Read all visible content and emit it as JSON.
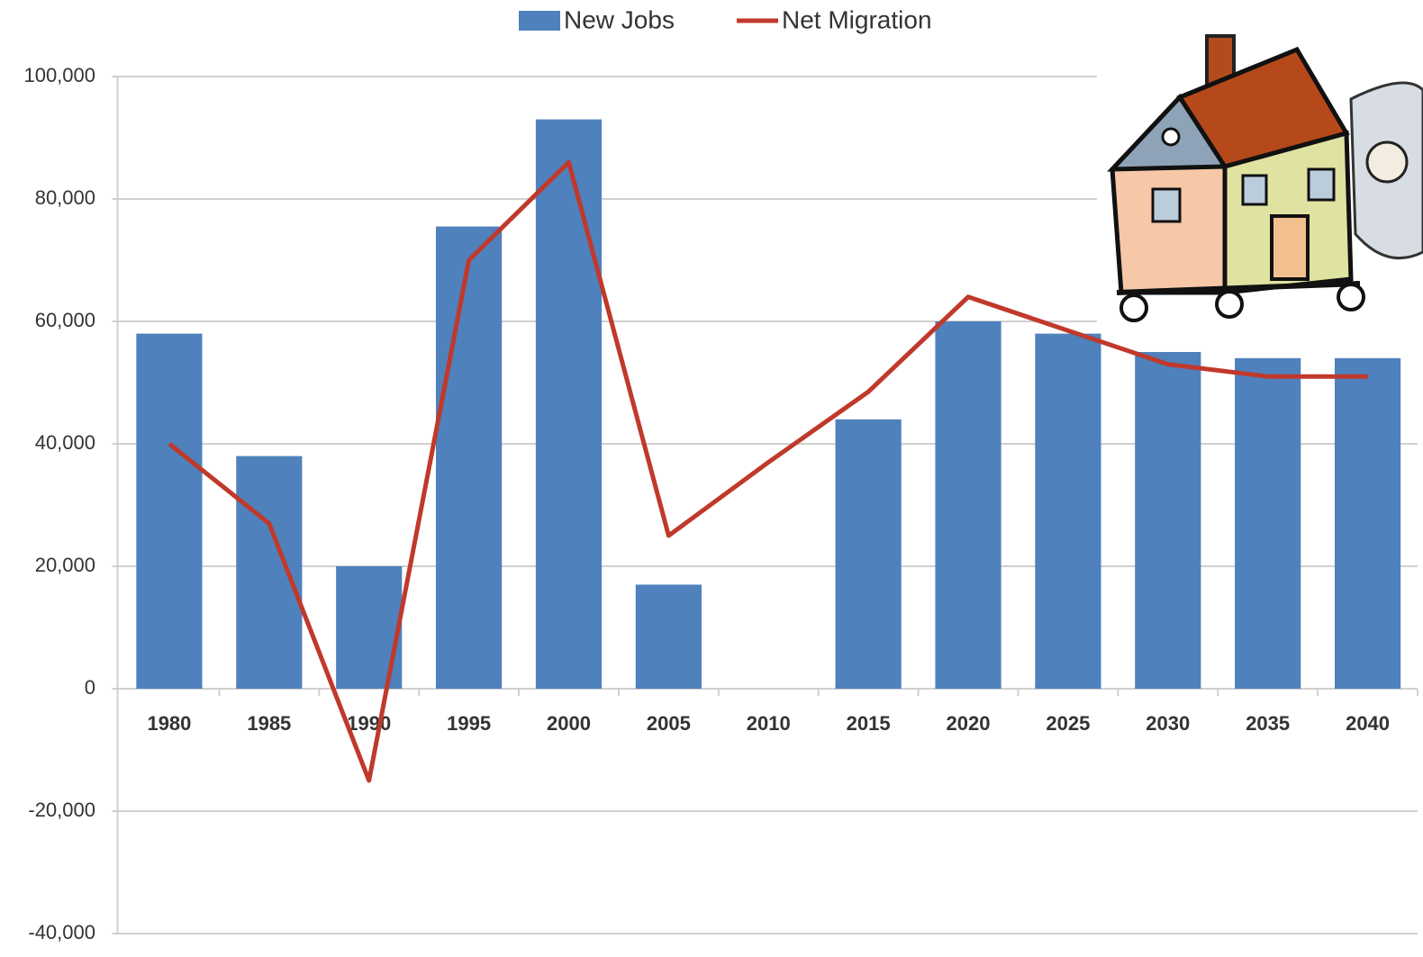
{
  "chart_data": {
    "type": "bar+line",
    "categories": [
      "1980",
      "1985",
      "1990",
      "1995",
      "2000",
      "2005",
      "2010",
      "2015",
      "2020",
      "2025",
      "2030",
      "2035",
      "2040"
    ],
    "series": [
      {
        "name": "New Jobs",
        "type": "bar",
        "color": "#4f81bd",
        "values": [
          58000,
          38000,
          20000,
          75500,
          93000,
          17000,
          null,
          44000,
          60000,
          58000,
          55000,
          54000,
          54000
        ]
      },
      {
        "name": "Net Migration",
        "type": "line",
        "color": "#c0392b",
        "values": [
          40000,
          27000,
          -15000,
          70000,
          86000,
          25000,
          37000,
          48500,
          64000,
          58500,
          53000,
          51000,
          51000
        ]
      }
    ],
    "ylim": [
      -40000,
      100000
    ],
    "yticks": [
      {
        "value": -40000,
        "label": "-40,000"
      },
      {
        "value": -20000,
        "label": "-20,000"
      },
      0,
      {
        "value": 20000,
        "label": "20,000"
      },
      {
        "value": 40000,
        "label": "40,000"
      },
      {
        "value": 60000,
        "label": "60,000"
      },
      {
        "value": 80000,
        "label": "80,000"
      },
      {
        "value": 100000,
        "label": "100,000"
      }
    ],
    "grid": true,
    "legend": "top"
  }
}
